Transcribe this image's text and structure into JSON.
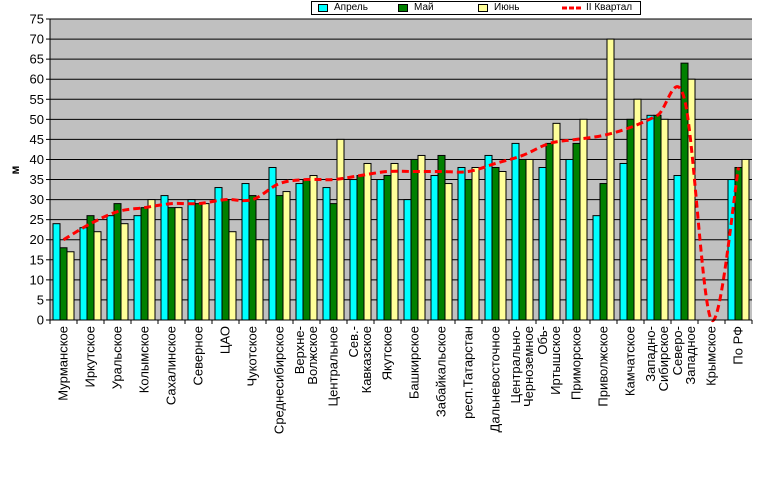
{
  "chart_data": {
    "type": "bar",
    "ylabel": "м",
    "ylim": [
      0,
      75
    ],
    "yticks": [
      0,
      5,
      10,
      15,
      20,
      25,
      30,
      35,
      40,
      45,
      50,
      55,
      60,
      65,
      70,
      75
    ],
    "grid": true,
    "legend_position": "top",
    "categories": [
      "Мурманское",
      "Иркутское",
      "Уральское",
      "Колымское",
      "Сахалинское",
      "Северное",
      "ЦАО",
      "Чукотское",
      "Среднесибирское",
      "Верхне-Волжское",
      "Центральное",
      "Сев.-Кавказское",
      "Якутское",
      "Башкирское",
      "Забайкальское",
      "респ.Татарстан",
      "Дальневосточное",
      "Центрально-Черноземное",
      "Обь-Иртышское",
      "Приморское",
      "Приволжское",
      "Камчатское",
      "Западно-Сибирское",
      "Северо-Западное",
      "Крымское",
      "По РФ"
    ],
    "series": [
      {
        "name": "Апрель",
        "kind": "bar",
        "color": "#00ffff",
        "values": [
          24,
          23,
          26,
          26,
          31,
          30,
          33,
          34,
          38,
          34,
          33,
          35,
          35,
          30,
          36,
          38,
          41,
          44,
          38,
          40,
          26,
          39,
          51,
          36,
          null,
          35
        ]
      },
      {
        "name": "Май",
        "kind": "bar",
        "color": "#008000",
        "values": [
          18,
          26,
          29,
          28,
          28,
          29,
          30,
          31,
          31,
          35,
          29,
          36,
          36,
          40,
          41,
          35,
          38,
          40,
          44,
          44,
          34,
          50,
          51,
          64,
          null,
          38
        ]
      },
      {
        "name": "Июнь",
        "kind": "bar",
        "color": "#ffff99",
        "values": [
          17,
          22,
          24,
          30,
          28,
          29,
          22,
          20,
          32,
          36,
          45,
          39,
          39,
          41,
          34,
          38,
          37,
          40,
          49,
          50,
          70,
          55,
          50,
          60,
          null,
          40
        ]
      },
      {
        "name": "II Квартал",
        "kind": "line",
        "color": "#ff0000",
        "values": [
          20,
          24,
          27,
          28,
          29,
          29,
          30,
          30,
          34,
          35,
          35,
          36,
          37,
          37,
          37,
          37,
          39,
          41,
          44,
          45,
          46,
          48,
          51,
          55,
          0,
          38
        ]
      }
    ]
  }
}
